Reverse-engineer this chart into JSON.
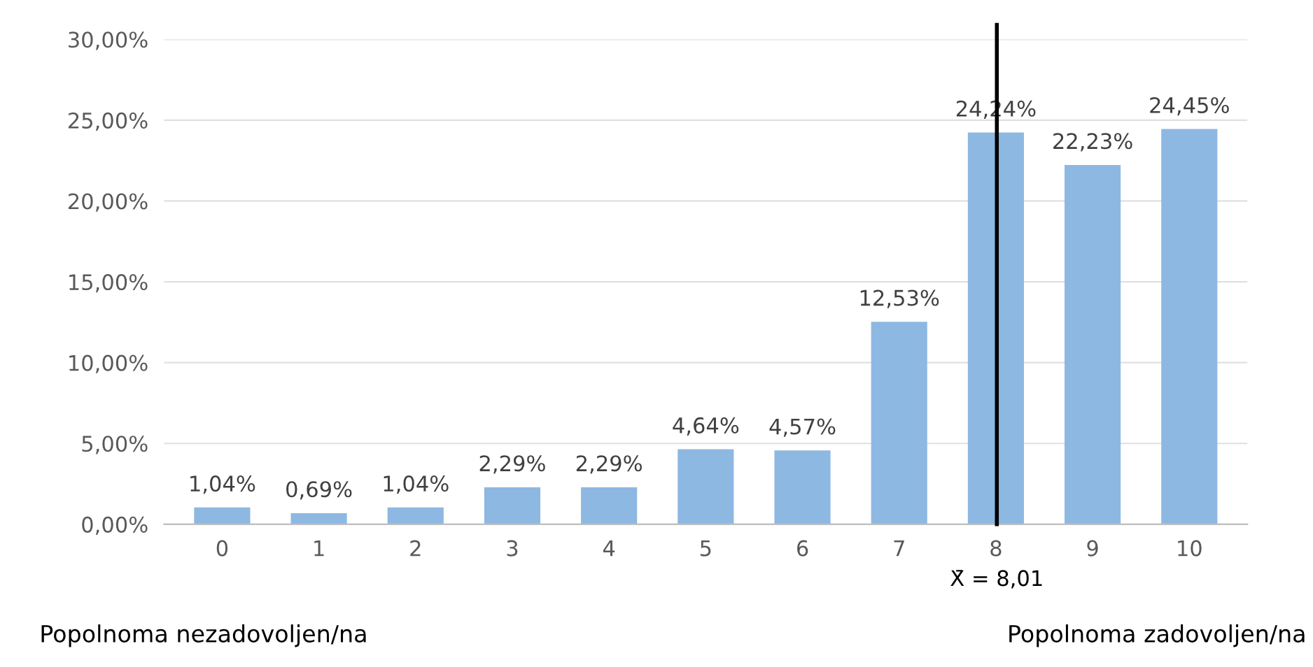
{
  "chart_data": {
    "type": "bar",
    "x": [
      0,
      1,
      2,
      3,
      4,
      5,
      6,
      7,
      8,
      9,
      10
    ],
    "xlim": [
      -0.6,
      10.6
    ],
    "xticks": [
      0,
      1,
      2,
      3,
      4,
      5,
      6,
      7,
      8,
      9,
      10
    ],
    "values": [
      1.04,
      0.69,
      1.04,
      2.29,
      2.29,
      4.64,
      4.57,
      12.53,
      24.24,
      22.23,
      24.45
    ],
    "value_labels": [
      "1,04%",
      "0,69%",
      "1,04%",
      "2,29%",
      "2,29%",
      "4,64%",
      "4,57%",
      "12,53%",
      "24,24%",
      "22,23%",
      "24,45%"
    ],
    "color": "#8db8e2",
    "ylim": [
      0,
      30
    ],
    "yticks": [
      {
        "value": 0,
        "label": "0,00%"
      },
      {
        "value": 5,
        "label": "5,00%"
      },
      {
        "value": 10,
        "label": "10,00%"
      },
      {
        "value": 15,
        "label": "15,00%"
      },
      {
        "value": 20,
        "label": "20,00%"
      },
      {
        "value": 25,
        "label": "25,00%"
      },
      {
        "value": 30,
        "label": "30,00%"
      }
    ],
    "grid": "y",
    "ref_lines": [
      {
        "axis": "x",
        "value": 8.01,
        "label": "X̄ = 8,01",
        "color": "#000000"
      }
    ],
    "annotations": [
      "Popolnoma nezadovoljen/na",
      "Popolnoma zadovoljen/na"
    ]
  }
}
